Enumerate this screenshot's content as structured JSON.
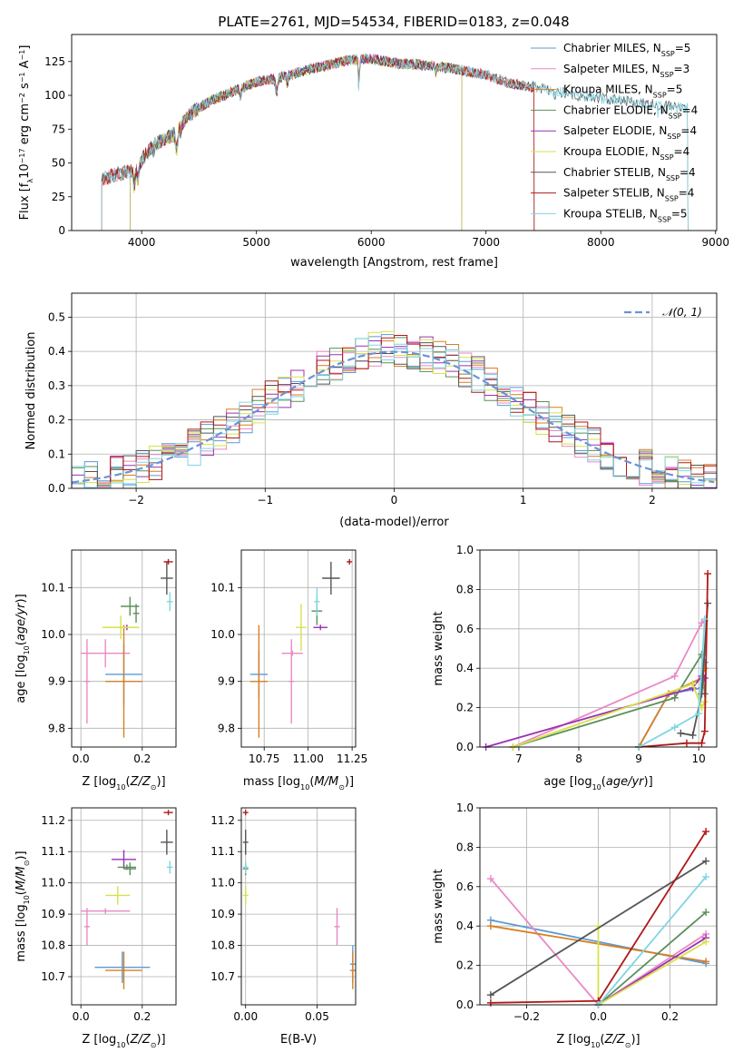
{
  "figure_title": "PLATE=2761, MJD=54534, FIBERID=0183, z=0.048",
  "colors": {
    "Chabrier MILES": "#5b9bd5",
    "Salpeter MILES": "#e989c6",
    "Kroupa MILES": "#d77f23",
    "Chabrier ELODIE": "#5a8f5a",
    "Salpeter ELODIE": "#9b30b3",
    "Kroupa ELODIE": "#d7e14a",
    "Chabrier STELIB": "#555555",
    "Salpeter STELIB": "#b01818",
    "Kroupa STELIB": "#7fd6e3",
    "gaussian": "#6b93d6"
  },
  "chart_data": [
    {
      "id": "spectrum",
      "type": "line",
      "title": "PLATE=2761, MJD=54534, FIBERID=0183, z=0.048",
      "xlabel": "wavelength [Angstrom, rest frame]",
      "ylabel": "Flux [fλ10⁻¹⁷ erg cm⁻² s⁻¹ A⁻¹]",
      "xlim": [
        3390,
        9010
      ],
      "ylim": [
        0,
        145
      ],
      "xticks": [
        4000,
        5000,
        6000,
        7000,
        8000,
        9000
      ],
      "yticks": [
        0,
        25,
        50,
        75,
        100,
        125
      ],
      "legend_position": "upper right",
      "continuum_knots": [
        [
          3650,
          38
        ],
        [
          3800,
          42
        ],
        [
          3950,
          45
        ],
        [
          4000,
          52
        ],
        [
          4100,
          63
        ],
        [
          4300,
          72
        ],
        [
          4400,
          85
        ],
        [
          4600,
          96
        ],
        [
          4800,
          103
        ],
        [
          5000,
          110
        ],
        [
          5200,
          113
        ],
        [
          5500,
          120
        ],
        [
          5800,
          126
        ],
        [
          6000,
          127
        ],
        [
          6200,
          124
        ],
        [
          6500,
          122
        ],
        [
          6700,
          120
        ],
        [
          7000,
          115
        ],
        [
          7200,
          109
        ],
        [
          7500,
          105
        ],
        [
          7800,
          100
        ],
        [
          8200,
          96
        ],
        [
          8600,
          92
        ],
        [
          8800,
          90
        ]
      ],
      "absorption_features": [
        [
          3934,
          15,
          12
        ],
        [
          3968,
          15,
          10
        ],
        [
          4101,
          12,
          6
        ],
        [
          4304,
          18,
          14
        ],
        [
          4340,
          10,
          5
        ],
        [
          4861,
          12,
          6
        ],
        [
          5175,
          20,
          10
        ],
        [
          5270,
          12,
          6
        ],
        [
          5892,
          10,
          22
        ],
        [
          6563,
          10,
          5
        ],
        [
          7600,
          30,
          4
        ],
        [
          8498,
          8,
          6
        ],
        [
          8542,
          8,
          8
        ],
        [
          8662,
          8,
          6
        ]
      ],
      "series": [
        {
          "name": "Chabrier MILES, N_SSP=5",
          "label_main": "Chabrier MILES, N",
          "sub": "SSP",
          "suffix": "=5",
          "range": [
            3650,
            7420
          ]
        },
        {
          "name": "Salpeter MILES, N_SSP=3",
          "label_main": "Salpeter MILES, N",
          "sub": "SSP",
          "suffix": "=3",
          "range": [
            3650,
            7420
          ]
        },
        {
          "name": "Kroupa MILES, N_SSP=5",
          "label_main": "Kroupa MILES, N",
          "sub": "SSP",
          "suffix": "=5",
          "range": [
            3650,
            7420
          ]
        },
        {
          "name": "Chabrier ELODIE, N_SSP=4",
          "label_main": "Chabrier ELODIE, N",
          "sub": "SSP",
          "suffix": "=4",
          "range": [
            3900,
            6790
          ]
        },
        {
          "name": "Salpeter ELODIE, N_SSP=4",
          "label_main": "Salpeter ELODIE, N",
          "sub": "SSP",
          "suffix": "=4",
          "range": [
            3900,
            6790
          ]
        },
        {
          "name": "Kroupa ELODIE, N_SSP=4",
          "label_main": "Kroupa ELODIE, N",
          "sub": "SSP",
          "suffix": "=4",
          "range": [
            3900,
            6790
          ]
        },
        {
          "name": "Chabrier STELIB, N_SSP=4",
          "label_main": "Chabrier STELIB, N",
          "sub": "SSP",
          "suffix": "=4",
          "range": [
            3650,
            8760
          ]
        },
        {
          "name": "Salpeter STELIB, N_SSP=4",
          "label_main": "Salpeter STELIB, N",
          "sub": "SSP",
          "suffix": "=4",
          "range": [
            3650,
            7420
          ]
        },
        {
          "name": "Kroupa STELIB, N_SSP=5",
          "label_main": "Kroupa STELIB, N",
          "sub": "SSP",
          "suffix": "=5",
          "range": [
            3650,
            8760
          ]
        }
      ]
    },
    {
      "id": "residuals",
      "type": "histogram",
      "xlabel": "(data-model)/error",
      "ylabel": "Normed distribution",
      "xlim": [
        -2.5,
        2.5
      ],
      "ylim": [
        0,
        0.57
      ],
      "xticks": [
        -2,
        -1,
        0,
        1,
        2
      ],
      "yticks": [
        0.0,
        0.1,
        0.2,
        0.3,
        0.4,
        0.5
      ],
      "grid": true,
      "bin_width": 0.1,
      "legend": "𝒩(0, 1)",
      "reference_curve": "standard normal, mean 0, sigma 1, peak 0.40"
    },
    {
      "id": "age_vs_Z",
      "type": "errorbar",
      "xlabel": "Z [log10(Z/Z⊙)]",
      "ylabel": "age [log10(age/yr)]",
      "xlim": [
        -0.03,
        0.31
      ],
      "ylim": [
        9.76,
        10.18
      ],
      "xticks": [
        0.0,
        0.2
      ],
      "yticks": [
        9.8,
        9.9,
        10.0,
        10.1
      ],
      "points": [
        {
          "series": "Chabrier MILES",
          "x": 0.14,
          "xerr": 0.06,
          "y": 9.915,
          "yerr": 0.065
        },
        {
          "series": "Salpeter MILES",
          "x": 0.08,
          "xerr": 0.08,
          "y": 9.96,
          "yerr": 0.03
        },
        {
          "series": "Salpeter MILES",
          "x": 0.02,
          "xerr": 0.0,
          "y": 9.9,
          "yerr": 0.09
        },
        {
          "series": "Kroupa MILES",
          "x": 0.14,
          "xerr": 0.06,
          "y": 9.9,
          "yerr": 0.12
        },
        {
          "series": "Chabrier ELODIE",
          "x": 0.18,
          "xerr": 0.01,
          "y": 10.045,
          "yerr": 0.02
        },
        {
          "series": "Salpeter ELODIE",
          "x": 0.15,
          "xerr": 0.03,
          "y": 10.015,
          "yerr": 0.0
        },
        {
          "series": "Kroupa ELODIE",
          "x": 0.13,
          "xerr": 0.06,
          "y": 10.015,
          "yerr": 0.025
        },
        {
          "series": "Chabrier STELIB",
          "x": 0.28,
          "xerr": 0.02,
          "y": 10.12,
          "yerr": 0.035
        },
        {
          "series": "Salpeter STELIB",
          "x": 0.285,
          "xerr": 0.015,
          "y": 10.155,
          "yerr": 0.0
        },
        {
          "series": "Kroupa STELIB",
          "x": 0.29,
          "xerr": 0.01,
          "y": 10.07,
          "yerr": 0.02
        },
        {
          "series": "Chabrier ELODIE",
          "x": 0.16,
          "xerr": 0.03,
          "y": 10.06,
          "yerr": 0.02
        }
      ]
    },
    {
      "id": "age_vs_mass",
      "type": "errorbar",
      "xlabel": "mass [log10(M/M⊙)]",
      "ylabel": "",
      "xlim": [
        10.62,
        11.27
      ],
      "ylim": [
        9.76,
        10.18
      ],
      "xticks": [
        10.75,
        11.0,
        11.25
      ],
      "yticks": [
        9.8,
        9.9,
        10.0,
        10.1
      ],
      "points": [
        {
          "series": "Chabrier MILES",
          "x": 10.72,
          "xerr": 0.05,
          "y": 9.915,
          "yerr": 0.05
        },
        {
          "series": "Salpeter MILES",
          "x": 10.91,
          "xerr": 0.06,
          "y": 9.96,
          "yerr": 0.0
        },
        {
          "series": "Salpeter MILES",
          "x": 10.905,
          "xerr": 0.0,
          "y": 9.9,
          "yerr": 0.09
        },
        {
          "series": "Kroupa MILES",
          "x": 10.72,
          "xerr": 0.05,
          "y": 9.9,
          "yerr": 0.12
        },
        {
          "series": "Chabrier ELODIE",
          "x": 11.05,
          "xerr": 0.03,
          "y": 10.05,
          "yerr": 0.03
        },
        {
          "series": "Salpeter ELODIE",
          "x": 11.07,
          "xerr": 0.04,
          "y": 10.015,
          "yerr": 0.0
        },
        {
          "series": "Kroupa ELODIE",
          "x": 10.96,
          "xerr": 0.03,
          "y": 10.015,
          "yerr": 0.05
        },
        {
          "series": "Chabrier STELIB",
          "x": 11.13,
          "xerr": 0.05,
          "y": 10.12,
          "yerr": 0.035
        },
        {
          "series": "Salpeter STELIB",
          "x": 11.235,
          "xerr": 0.01,
          "y": 10.155,
          "yerr": 0.0
        },
        {
          "series": "Kroupa STELIB",
          "x": 11.05,
          "xerr": 0.01,
          "y": 10.07,
          "yerr": 0.03
        }
      ]
    },
    {
      "id": "mass_weight_vs_age",
      "type": "line",
      "xlabel": "age [log10(age/yr)]",
      "ylabel": "mass weight",
      "xlim": [
        6.35,
        10.3
      ],
      "ylim": [
        0,
        1.0
      ],
      "xticks": [
        7,
        8,
        9,
        10
      ],
      "yticks": [
        0.0,
        0.2,
        0.4,
        0.6,
        0.8,
        1.0
      ],
      "grid": true,
      "series": [
        {
          "name": "Chabrier MILES",
          "x": [
            9.0,
            9.5,
            10.05,
            10.1
          ],
          "y": [
            0.0,
            0.27,
            0.3,
            0.43
          ]
        },
        {
          "name": "Salpeter MILES",
          "x": [
            6.9,
            9.6,
            10.05,
            10.1
          ],
          "y": [
            0.0,
            0.36,
            0.63,
            0.64
          ]
        },
        {
          "name": "Kroupa MILES",
          "x": [
            9.0,
            9.5,
            10.05,
            10.1
          ],
          "y": [
            0.0,
            0.27,
            0.35,
            0.4
          ]
        },
        {
          "name": "Chabrier ELODIE",
          "x": [
            6.9,
            9.6,
            10.05,
            10.1
          ],
          "y": [
            0.0,
            0.25,
            0.47,
            0.27
          ]
        },
        {
          "name": "Salpeter ELODIE",
          "x": [
            6.45,
            9.9,
            10.05,
            10.1
          ],
          "y": [
            0.0,
            0.3,
            0.36,
            0.35
          ]
        },
        {
          "name": "Kroupa ELODIE",
          "x": [
            6.9,
            9.9,
            10.05,
            10.1
          ],
          "y": [
            0.0,
            0.32,
            0.2,
            0.23
          ]
        },
        {
          "name": "Chabrier STELIB",
          "x": [
            9.7,
            9.9,
            10.05,
            10.15
          ],
          "y": [
            0.07,
            0.06,
            0.27,
            0.73
          ]
        },
        {
          "name": "Salpeter STELIB",
          "x": [
            9.0,
            9.8,
            10.05,
            10.1,
            10.15
          ],
          "y": [
            0.0,
            0.02,
            0.02,
            0.08,
            0.88
          ]
        },
        {
          "name": "Kroupa STELIB",
          "x": [
            9.0,
            9.6,
            10.0,
            10.1
          ],
          "y": [
            0.0,
            0.1,
            0.17,
            0.65
          ]
        }
      ]
    },
    {
      "id": "mass_vs_Z",
      "type": "errorbar",
      "xlabel": "Z [log10(Z/Z⊙)]",
      "ylabel": "mass [log10(M/M⊙)]",
      "xlim": [
        -0.03,
        0.31
      ],
      "ylim": [
        10.61,
        11.24
      ],
      "xticks": [
        0.0,
        0.2
      ],
      "yticks": [
        10.7,
        10.8,
        10.9,
        11.0,
        11.1,
        11.2
      ],
      "points": [
        {
          "series": "Chabrier MILES",
          "x": 0.135,
          "xerr": 0.09,
          "y": 10.73,
          "yerr": 0.05
        },
        {
          "series": "Salpeter MILES",
          "x": 0.08,
          "xerr": 0.08,
          "y": 10.91,
          "yerr": 0.0
        },
        {
          "series": "Salpeter MILES",
          "x": 0.02,
          "xerr": 0.0,
          "y": 10.86,
          "yerr": 0.06
        },
        {
          "series": "Kroupa MILES",
          "x": 0.14,
          "xerr": 0.06,
          "y": 10.72,
          "yerr": 0.06
        },
        {
          "series": "Chabrier ELODIE",
          "x": 0.16,
          "xerr": 0.02,
          "y": 11.045,
          "yerr": 0.02
        },
        {
          "series": "Salpeter ELODIE",
          "x": 0.14,
          "xerr": 0.04,
          "y": 11.075,
          "yerr": 0.03
        },
        {
          "series": "Kroupa ELODIE",
          "x": 0.12,
          "xerr": 0.04,
          "y": 10.96,
          "yerr": 0.03
        },
        {
          "series": "Chabrier ELODIE",
          "x": 0.15,
          "xerr": 0.03,
          "y": 11.05,
          "yerr": 0.0
        },
        {
          "series": "Chabrier STELIB",
          "x": 0.28,
          "xerr": 0.02,
          "y": 11.13,
          "yerr": 0.04
        },
        {
          "series": "Salpeter STELIB",
          "x": 0.285,
          "xerr": 0.015,
          "y": 11.225,
          "yerr": 0.0
        },
        {
          "series": "Kroupa STELIB",
          "x": 0.29,
          "xerr": 0.01,
          "y": 11.05,
          "yerr": 0.02
        }
      ]
    },
    {
      "id": "mass_vs_ebv",
      "type": "errorbar",
      "xlabel": "E(B-V)",
      "ylabel": "",
      "xlim": [
        -0.003,
        0.077
      ],
      "ylim": [
        10.61,
        11.24
      ],
      "xticks": [
        0.0,
        0.05
      ],
      "yticks": [
        10.7,
        10.8,
        10.9,
        11.0,
        11.1,
        11.2
      ],
      "points": [
        {
          "series": "Chabrier MILES",
          "x": 0.075,
          "xerr": 0.0,
          "y": 10.74,
          "yerr": 0.06
        },
        {
          "series": "Salpeter MILES",
          "x": 0.064,
          "xerr": 0.0,
          "y": 10.86,
          "yerr": 0.06
        },
        {
          "series": "Kroupa MILES",
          "x": 0.075,
          "xerr": 0.0,
          "y": 10.72,
          "yerr": 0.06
        },
        {
          "series": "Chabrier ELODIE",
          "x": 0.0,
          "xerr": 0.0,
          "y": 11.045,
          "yerr": 0.02
        },
        {
          "series": "Kroupa ELODIE",
          "x": 0.0,
          "xerr": 0.0,
          "y": 10.96,
          "yerr": 0.03
        },
        {
          "series": "Chabrier STELIB",
          "x": 0.0,
          "xerr": 0.0,
          "y": 11.13,
          "yerr": 0.04
        },
        {
          "series": "Salpeter STELIB",
          "x": 0.0,
          "xerr": 0.001,
          "y": 11.225,
          "yerr": 0.0
        },
        {
          "series": "Kroupa STELIB",
          "x": 0.0,
          "xerr": 0.0,
          "y": 11.05,
          "yerr": 0.02
        }
      ]
    },
    {
      "id": "mass_weight_vs_Z",
      "type": "line",
      "xlabel": "Z [log10(Z/Z⊙)]",
      "ylabel": "mass weight",
      "xlim": [
        -0.33,
        0.33
      ],
      "ylim": [
        0,
        1.0
      ],
      "xticks": [
        -0.2,
        0.0,
        0.2
      ],
      "yticks": [
        0.0,
        0.2,
        0.4,
        0.6,
        0.8,
        1.0
      ],
      "grid": true,
      "series": [
        {
          "name": "Chabrier MILES",
          "x": [
            -0.3,
            0.3
          ],
          "y": [
            0.43,
            0.21
          ]
        },
        {
          "name": "Salpeter MILES",
          "x": [
            -0.3,
            0.0,
            0.3
          ],
          "y": [
            0.64,
            0.0,
            0.36
          ]
        },
        {
          "name": "Kroupa MILES",
          "x": [
            -0.3,
            0.3
          ],
          "y": [
            0.4,
            0.22
          ]
        },
        {
          "name": "Chabrier ELODIE",
          "x": [
            0.0,
            0.3
          ],
          "y": [
            0.0,
            0.47
          ]
        },
        {
          "name": "Salpeter ELODIE",
          "x": [
            0.0,
            0.3
          ],
          "y": [
            0.0,
            0.34
          ]
        },
        {
          "name": "Kroupa ELODIE",
          "x": [
            0.0,
            0.0,
            0.3
          ],
          "y": [
            0.4,
            0.0,
            0.32
          ]
        },
        {
          "name": "Chabrier STELIB",
          "x": [
            -0.3,
            0.3
          ],
          "y": [
            0.05,
            0.73
          ]
        },
        {
          "name": "Salpeter STELIB",
          "x": [
            -0.3,
            0.0,
            0.3
          ],
          "y": [
            0.01,
            0.02,
            0.88
          ]
        },
        {
          "name": "Kroupa STELIB",
          "x": [
            0.0,
            0.3
          ],
          "y": [
            0.0,
            0.65
          ]
        }
      ]
    }
  ]
}
